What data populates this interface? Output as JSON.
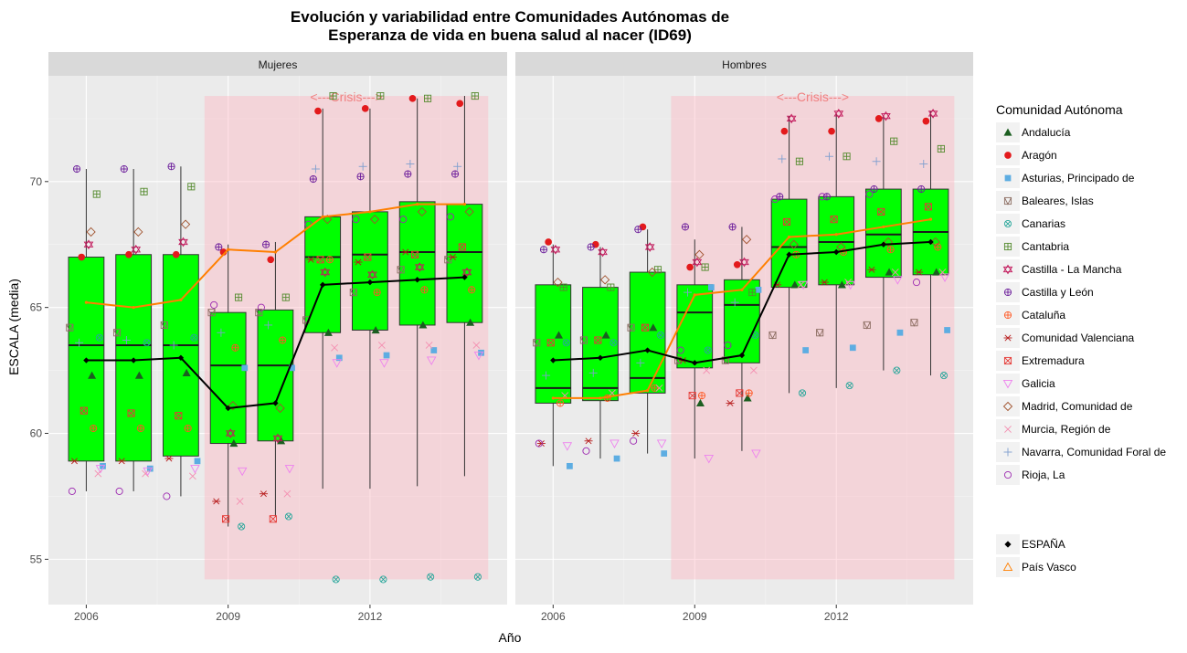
{
  "chart_data": {
    "type": "boxplot",
    "title_lines": [
      "Evolución y variabilidad entre Comunidades Autónomas de",
      "Esperanza de vida en buena salud al nacer (ID69)"
    ],
    "xlabel": "Año",
    "ylabel": "ESCALA (media)",
    "facets": [
      "Mujeres",
      "Hombres"
    ],
    "x_ticks": [
      2006,
      2009,
      2012
    ],
    "x_range": [
      2005.2,
      2014.9
    ],
    "y_ticks": [
      55,
      60,
      65,
      70
    ],
    "y_range": [
      53.2,
      74.2
    ],
    "grid": true,
    "crisis": {
      "label": "<---Crisis--->",
      "x_start": 2008.5,
      "x_end": 2014.5,
      "y_bottom": 54.2,
      "y_top": 73.4
    },
    "colors": {
      "box_fill": "#00ff00",
      "espana": "#000000",
      "pais_vasco": "#ff7f00",
      "crisis_fill": "#ffb6c1",
      "crisis_text": "#f08080",
      "panel_bg": "#ebebeb",
      "strip_bg": "#d9d9d9"
    },
    "legend": {
      "title": "Comunidad Autónoma",
      "position": "right",
      "items": [
        {
          "label": "Andalucía",
          "shape": "triangle-filled",
          "color": "#1b5e20"
        },
        {
          "label": "Aragón",
          "shape": "circle-filled",
          "color": "#e31a1c"
        },
        {
          "label": "Asturias, Principado de",
          "shape": "square-filled",
          "color": "#5dade2"
        },
        {
          "label": "Baleares, Islas",
          "shape": "square-triangle",
          "color": "#8d6e63"
        },
        {
          "label": "Canarias",
          "shape": "circle-cross",
          "color": "#26a69a"
        },
        {
          "label": "Cantabria",
          "shape": "square-plus",
          "color": "#558b2f"
        },
        {
          "label": "Castilla - La Mancha",
          "shape": "star-of-david",
          "color": "#c2185b"
        },
        {
          "label": "Castilla y León",
          "shape": "circle-plus",
          "color": "#6a1b9a"
        },
        {
          "label": "Cataluña",
          "shape": "circle-plus",
          "color": "#ff5722"
        },
        {
          "label": "Comunidad Valenciana",
          "shape": "asterisk",
          "color": "#b71c1c"
        },
        {
          "label": "Extremadura",
          "shape": "square-x",
          "color": "#e53935"
        },
        {
          "label": "Galicia",
          "shape": "triangle-down",
          "color": "#ee82ee"
        },
        {
          "label": "Madrid, Comunidad de",
          "shape": "diamond",
          "color": "#a0522d"
        },
        {
          "label": "Murcia, Región de",
          "shape": "x",
          "color": "#f48fb1"
        },
        {
          "label": "Navarra, Comunidad Foral de",
          "shape": "plus",
          "color": "#7f9fcf"
        },
        {
          "label": "Rioja, La",
          "shape": "circle",
          "color": "#9c27b0"
        }
      ],
      "extra_items": [
        {
          "label": "ESPAÑA",
          "shape": "diamond-filled",
          "color": "#000000"
        },
        {
          "label": "País Vasco",
          "shape": "triangle",
          "color": "#ff7f00"
        }
      ]
    },
    "panels": [
      {
        "name": "Mujeres",
        "years": [
          2006,
          2007,
          2008,
          2009,
          2010,
          2011,
          2012,
          2013,
          2014
        ],
        "boxes": [
          {
            "year": 2006,
            "min": 57.7,
            "q1": 58.9,
            "median": 63.5,
            "q3": 67.0,
            "max": 70.5
          },
          {
            "year": 2007,
            "min": 57.7,
            "q1": 58.9,
            "median": 63.5,
            "q3": 67.1,
            "max": 70.5
          },
          {
            "year": 2008,
            "min": 57.5,
            "q1": 59.1,
            "median": 63.5,
            "q3": 67.1,
            "max": 70.6
          },
          {
            "year": 2009,
            "min": 56.3,
            "q1": 59.6,
            "median": 62.7,
            "q3": 64.8,
            "max": 67.5
          },
          {
            "year": 2010,
            "min": 56.7,
            "q1": 59.7,
            "median": 62.7,
            "q3": 64.9,
            "max": 67.6
          },
          {
            "year": 2011,
            "min": 57.8,
            "q1": 64.0,
            "median": 67.0,
            "q3": 68.6,
            "max": 72.9
          },
          {
            "year": 2012,
            "min": 57.8,
            "q1": 64.1,
            "median": 67.1,
            "q3": 68.8,
            "max": 72.9
          },
          {
            "year": 2013,
            "min": 57.9,
            "q1": 64.3,
            "median": 67.2,
            "q3": 69.2,
            "max": 73.3
          },
          {
            "year": 2014,
            "min": 58.3,
            "q1": 64.4,
            "median": 67.2,
            "q3": 69.1,
            "max": 73.4
          }
        ],
        "espana": [
          62.9,
          62.9,
          63.0,
          61.0,
          61.2,
          65.9,
          66.0,
          66.1,
          66.2
        ],
        "pais_vasco": [
          65.2,
          65.0,
          65.3,
          67.3,
          67.2,
          68.6,
          68.8,
          69.1,
          69.1
        ],
        "communities": [
          [
            62.3,
            62.3,
            62.4,
            59.6,
            59.7,
            64.0,
            64.1,
            64.3,
            64.4
          ],
          [
            67.0,
            67.1,
            67.1,
            67.2,
            66.9,
            72.8,
            72.9,
            73.3,
            73.1
          ],
          [
            58.7,
            58.6,
            58.9,
            62.6,
            62.6,
            63.0,
            63.1,
            63.3,
            63.2
          ],
          [
            64.2,
            64.0,
            64.3,
            64.8,
            64.8,
            64.5,
            65.6,
            66.5,
            66.9
          ],
          [
            63.8,
            63.6,
            63.8,
            56.3,
            56.7,
            54.2,
            54.2,
            54.3,
            54.3
          ],
          [
            69.5,
            69.6,
            69.8,
            65.4,
            65.4,
            73.4,
            73.4,
            73.3,
            73.4
          ],
          [
            67.5,
            67.3,
            67.6,
            60.0,
            59.8,
            66.4,
            66.3,
            66.6,
            66.4
          ],
          [
            70.5,
            70.5,
            70.6,
            67.4,
            67.5,
            70.1,
            70.2,
            70.3,
            70.3
          ],
          [
            60.2,
            60.2,
            60.2,
            63.4,
            63.7,
            66.9,
            65.6,
            65.7,
            65.7
          ],
          [
            58.9,
            58.9,
            59.0,
            57.3,
            57.6,
            66.9,
            66.8,
            67.2,
            67.0
          ],
          [
            60.9,
            60.8,
            60.7,
            56.6,
            56.6,
            66.9,
            67.0,
            67.1,
            67.4
          ],
          [
            58.6,
            58.5,
            58.6,
            58.5,
            58.6,
            62.8,
            62.8,
            62.9,
            63.1
          ],
          [
            68.0,
            68.0,
            68.3,
            61.1,
            61.0,
            68.5,
            68.5,
            68.8,
            68.8
          ],
          [
            58.4,
            58.4,
            58.3,
            57.3,
            57.6,
            63.4,
            63.5,
            63.5,
            63.5
          ],
          [
            63.6,
            63.7,
            63.5,
            64.0,
            64.3,
            70.5,
            70.6,
            70.7,
            70.6
          ],
          [
            57.7,
            57.7,
            57.5,
            65.1,
            65.0,
            68.3,
            68.5,
            68.5,
            68.6
          ]
        ]
      },
      {
        "name": "Hombres",
        "years": [
          2006,
          2007,
          2008,
          2009,
          2010,
          2011,
          2012,
          2013,
          2014
        ],
        "boxes": [
          {
            "year": 2006,
            "min": 58.7,
            "q1": 61.2,
            "median": 61.8,
            "q3": 65.9,
            "max": 67.5
          },
          {
            "year": 2007,
            "min": 59.0,
            "q1": 61.3,
            "median": 61.8,
            "q3": 65.8,
            "max": 67.4
          },
          {
            "year": 2008,
            "min": 59.2,
            "q1": 61.6,
            "median": 62.2,
            "q3": 66.4,
            "max": 68.1
          },
          {
            "year": 2009,
            "min": 59.0,
            "q1": 62.6,
            "median": 64.8,
            "q3": 65.9,
            "max": 67.7
          },
          {
            "year": 2010,
            "min": 59.3,
            "q1": 62.8,
            "median": 65.1,
            "q3": 66.1,
            "max": 68.2
          },
          {
            "year": 2011,
            "min": 61.6,
            "q1": 65.8,
            "median": 67.4,
            "q3": 69.3,
            "max": 72.6
          },
          {
            "year": 2012,
            "min": 61.8,
            "q1": 65.9,
            "median": 67.6,
            "q3": 69.4,
            "max": 72.7
          },
          {
            "year": 2013,
            "min": 62.5,
            "q1": 66.2,
            "median": 67.9,
            "q3": 69.7,
            "max": 72.6
          },
          {
            "year": 2014,
            "min": 62.3,
            "q1": 66.3,
            "median": 68.0,
            "q3": 69.7,
            "max": 72.8
          }
        ],
        "espana": [
          62.9,
          63.0,
          63.3,
          62.8,
          63.1,
          67.1,
          67.2,
          67.5,
          67.6
        ],
        "pais_vasco": [
          61.4,
          61.4,
          61.7,
          65.5,
          65.7,
          67.8,
          67.9,
          68.2,
          68.5
        ],
        "communities": [
          [
            63.9,
            63.9,
            64.2,
            61.2,
            61.4,
            65.9,
            65.9,
            66.4,
            66.4
          ],
          [
            67.6,
            67.5,
            68.2,
            66.6,
            66.7,
            72.0,
            72.0,
            72.5,
            72.4
          ],
          [
            58.7,
            59.0,
            59.2,
            65.8,
            65.7,
            63.3,
            63.4,
            64.0,
            64.1
          ],
          [
            63.6,
            63.7,
            64.2,
            62.9,
            62.9,
            63.9,
            64.0,
            64.3,
            64.4
          ],
          [
            63.6,
            63.6,
            63.9,
            63.3,
            63.9,
            61.6,
            61.9,
            62.5,
            62.3
          ],
          [
            65.8,
            65.8,
            66.5,
            66.6,
            65.6,
            70.8,
            71.0,
            71.6,
            71.3
          ],
          [
            67.3,
            67.2,
            67.4,
            66.8,
            66.8,
            72.5,
            72.7,
            72.6,
            72.7
          ],
          [
            67.3,
            67.4,
            68.1,
            68.2,
            68.2,
            69.4,
            69.4,
            69.7,
            69.7
          ],
          [
            61.2,
            61.4,
            61.8,
            61.5,
            61.6,
            67.1,
            67.2,
            67.3,
            67.4
          ],
          [
            59.6,
            59.7,
            60.0,
            62.9,
            61.2,
            65.9,
            66.0,
            66.5,
            66.4
          ],
          [
            63.6,
            63.7,
            64.2,
            61.5,
            61.6,
            68.4,
            68.5,
            68.8,
            69.0
          ],
          [
            59.5,
            59.6,
            59.6,
            59.0,
            59.2,
            65.9,
            65.9,
            66.1,
            66.2
          ],
          [
            66.0,
            66.1,
            66.4,
            67.1,
            67.7,
            67.5,
            67.4,
            67.6,
            67.6
          ],
          [
            61.5,
            61.6,
            61.8,
            62.5,
            62.5,
            65.9,
            66.0,
            66.4,
            66.4
          ],
          [
            62.3,
            62.4,
            62.8,
            65.6,
            65.2,
            70.9,
            71.0,
            70.8,
            70.7
          ],
          [
            59.6,
            59.3,
            59.7,
            63.3,
            63.5,
            69.3,
            69.4,
            69.5,
            66.0
          ]
        ]
      }
    ]
  }
}
